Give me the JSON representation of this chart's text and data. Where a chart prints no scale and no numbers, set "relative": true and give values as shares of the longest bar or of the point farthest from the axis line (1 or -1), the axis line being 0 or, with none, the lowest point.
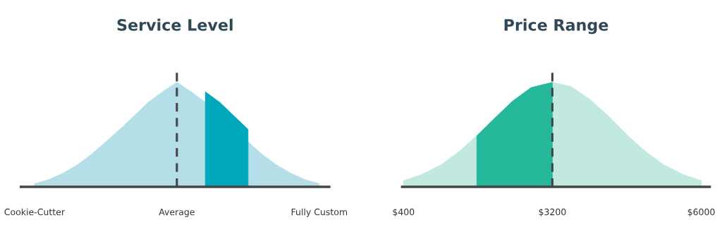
{
  "chart_data": [
    {
      "type": "area",
      "title": "Service Level",
      "relative": true,
      "categories": [
        "Cookie-Cutter",
        null,
        null,
        null,
        null,
        null,
        null,
        null,
        null,
        null,
        "Average",
        null,
        null,
        null,
        null,
        null,
        null,
        null,
        null,
        null,
        "Fully Custom"
      ],
      "grid": false,
      "legend": false,
      "tick_labels": "x",
      "series": [
        {
          "color": "#b4dfe8",
          "values": [
            0.03,
            0.07,
            0.13,
            0.21,
            0.31,
            0.43,
            0.55,
            0.68,
            0.81,
            0.91,
            1,
            0.91,
            0.81,
            null,
            null,
            0.43,
            0.31,
            0.21,
            0.13,
            0.07,
            0.03
          ]
        },
        {
          "color": "#00a8bc",
          "values": [
            null,
            null,
            null,
            null,
            null,
            null,
            null,
            null,
            null,
            null,
            null,
            null,
            0.91,
            0.81,
            0.68,
            0.55,
            null,
            null,
            null,
            null,
            null
          ]
        }
      ],
      "ref_lines": [
        {
          "axis": "x",
          "value": "Average",
          "color": "#444444",
          "line_style": "dashed"
        }
      ]
    },
    {
      "type": "area",
      "title": "Price Range",
      "relative": true,
      "xlim": [
        375,
        6160
      ],
      "xticks": [
        {
          "value": 400,
          "label": "$400"
        },
        {
          "value": 3200,
          "label": "$3200"
        },
        {
          "value": 6000,
          "label": "$6000"
        }
      ],
      "grid": false,
      "legend": false,
      "tick_labels": "x",
      "series": [
        {
          "color": "#c2e9df",
          "x": [
            400,
            750,
            1100,
            1450,
            1800,
            2150,
            2500,
            2850,
            3200,
            3550,
            3900,
            4250,
            4600,
            4950,
            5300,
            5650,
            6000
          ],
          "values": [
            0.06,
            0.12,
            0.21,
            0.34,
            0.5,
            null,
            null,
            null,
            1,
            0.96,
            0.84,
            0.68,
            0.5,
            0.34,
            0.21,
            0.12,
            0.06
          ]
        },
        {
          "color": "#25b89a",
          "x": [
            1780,
            2100,
            2450,
            2800,
            3200
          ],
          "values": [
            0.49,
            0.65,
            0.82,
            0.95,
            1
          ]
        }
      ],
      "ref_lines": [
        {
          "axis": "x",
          "value": 3200,
          "color": "#444444",
          "line_style": "dashed"
        }
      ]
    }
  ]
}
